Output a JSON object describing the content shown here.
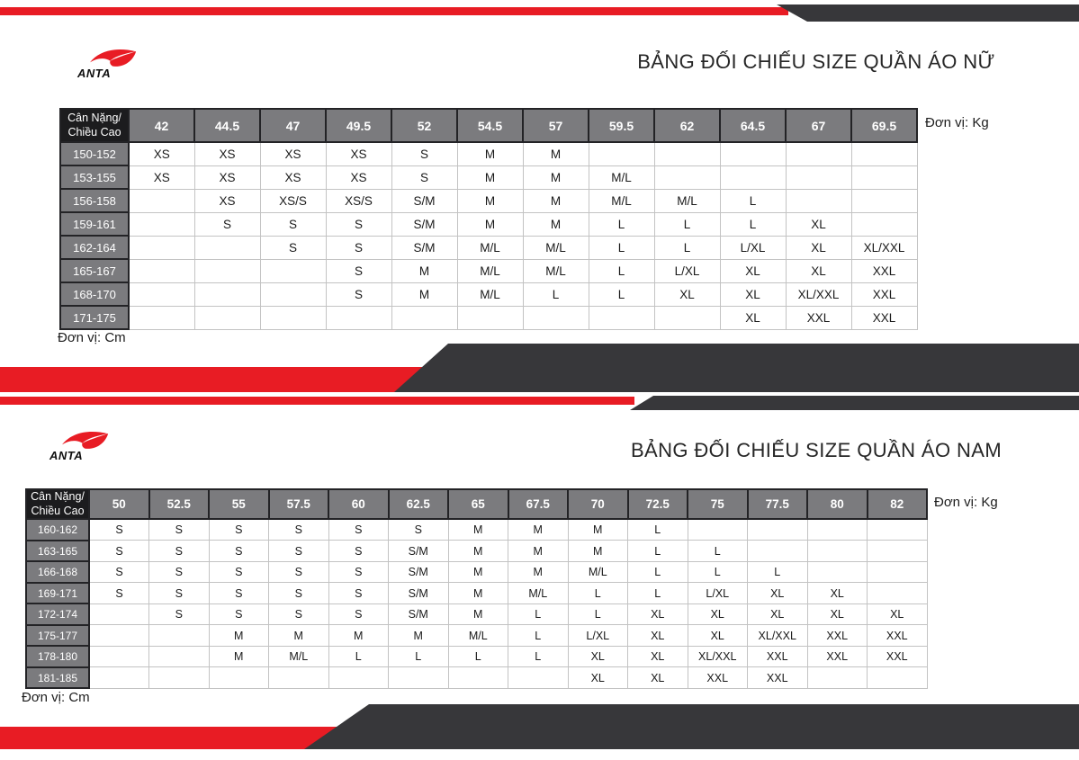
{
  "colors": {
    "red": "#e81c24",
    "dark": "#37373a",
    "gray": "#7b7b7e",
    "corner": "#1c1c1e",
    "bdark": "#232326",
    "blight": "#c3c3c3"
  },
  "brand": {
    "name": "ANTA"
  },
  "units": {
    "kg": "Đơn vị: Kg",
    "cm": "Đơn vị: Cm"
  },
  "tables": {
    "women": {
      "title": "BẢNG ĐỐI CHIẾU SIZE QUẦN ÁO NỮ",
      "corner": [
        "Cân Nặng/",
        "Chiều Cao"
      ],
      "weights": [
        "42",
        "44.5",
        "47",
        "49.5",
        "52",
        "54.5",
        "57",
        "59.5",
        "62",
        "64.5",
        "67",
        "69.5"
      ],
      "rows": [
        {
          "height": "150-152",
          "sizes": [
            "XS",
            "XS",
            "XS",
            "XS",
            "S",
            "M",
            "M",
            "",
            "",
            "",
            "",
            ""
          ]
        },
        {
          "height": "153-155",
          "sizes": [
            "XS",
            "XS",
            "XS",
            "XS",
            "S",
            "M",
            "M",
            "M/L",
            "",
            "",
            "",
            ""
          ]
        },
        {
          "height": "156-158",
          "sizes": [
            "",
            "XS",
            "XS/S",
            "XS/S",
            "S/M",
            "M",
            "M",
            "M/L",
            "M/L",
            "L",
            "",
            ""
          ]
        },
        {
          "height": "159-161",
          "sizes": [
            "",
            "S",
            "S",
            "S",
            "S/M",
            "M",
            "M",
            "L",
            "L",
            "L",
            "XL",
            ""
          ]
        },
        {
          "height": "162-164",
          "sizes": [
            "",
            "",
            "S",
            "S",
            "S/M",
            "M/L",
            "M/L",
            "L",
            "L",
            "L/XL",
            "XL",
            "XL/XXL"
          ]
        },
        {
          "height": "165-167",
          "sizes": [
            "",
            "",
            "",
            "S",
            "M",
            "M/L",
            "M/L",
            "L",
            "L/XL",
            "XL",
            "XL",
            "XXL"
          ]
        },
        {
          "height": "168-170",
          "sizes": [
            "",
            "",
            "",
            "S",
            "M",
            "M/L",
            "L",
            "L",
            "XL",
            "XL",
            "XL/XXL",
            "XXL"
          ]
        },
        {
          "height": "171-175",
          "sizes": [
            "",
            "",
            "",
            "",
            "",
            "",
            "",
            "",
            "",
            "XL",
            "XXL",
            "XXL"
          ]
        }
      ]
    },
    "men": {
      "title": "BẢNG ĐỐI CHIẾU SIZE QUẦN ÁO NAM",
      "corner": [
        "Cân Nặng/",
        "Chiều Cao"
      ],
      "weights": [
        "50",
        "52.5",
        "55",
        "57.5",
        "60",
        "62.5",
        "65",
        "67.5",
        "70",
        "72.5",
        "75",
        "77.5",
        "80",
        "82"
      ],
      "rows": [
        {
          "height": "160-162",
          "sizes": [
            "S",
            "S",
            "S",
            "S",
            "S",
            "S",
            "M",
            "M",
            "M",
            "L",
            "",
            "",
            "",
            ""
          ]
        },
        {
          "height": "163-165",
          "sizes": [
            "S",
            "S",
            "S",
            "S",
            "S",
            "S/M",
            "M",
            "M",
            "M",
            "L",
            "L",
            "",
            "",
            ""
          ]
        },
        {
          "height": "166-168",
          "sizes": [
            "S",
            "S",
            "S",
            "S",
            "S",
            "S/M",
            "M",
            "M",
            "M/L",
            "L",
            "L",
            "L",
            "",
            ""
          ]
        },
        {
          "height": "169-171",
          "sizes": [
            "S",
            "S",
            "S",
            "S",
            "S",
            "S/M",
            "M",
            "M/L",
            "L",
            "L",
            "L/XL",
            "XL",
            "XL",
            ""
          ]
        },
        {
          "height": "172-174",
          "sizes": [
            "",
            "S",
            "S",
            "S",
            "S",
            "S/M",
            "M",
            "L",
            "L",
            "XL",
            "XL",
            "XL",
            "XL",
            "XL"
          ]
        },
        {
          "height": "175-177",
          "sizes": [
            "",
            "",
            "M",
            "M",
            "M",
            "M",
            "M/L",
            "L",
            "L/XL",
            "XL",
            "XL",
            "XL/XXL",
            "XXL",
            "XXL"
          ]
        },
        {
          "height": "178-180",
          "sizes": [
            "",
            "",
            "M",
            "M/L",
            "L",
            "L",
            "L",
            "L",
            "XL",
            "XL",
            "XL/XXL",
            "XXL",
            "XXL",
            "XXL"
          ]
        },
        {
          "height": "181-185",
          "sizes": [
            "",
            "",
            "",
            "",
            "",
            "",
            "",
            "",
            "XL",
            "XL",
            "XXL",
            "XXL",
            "",
            ""
          ]
        }
      ]
    }
  }
}
